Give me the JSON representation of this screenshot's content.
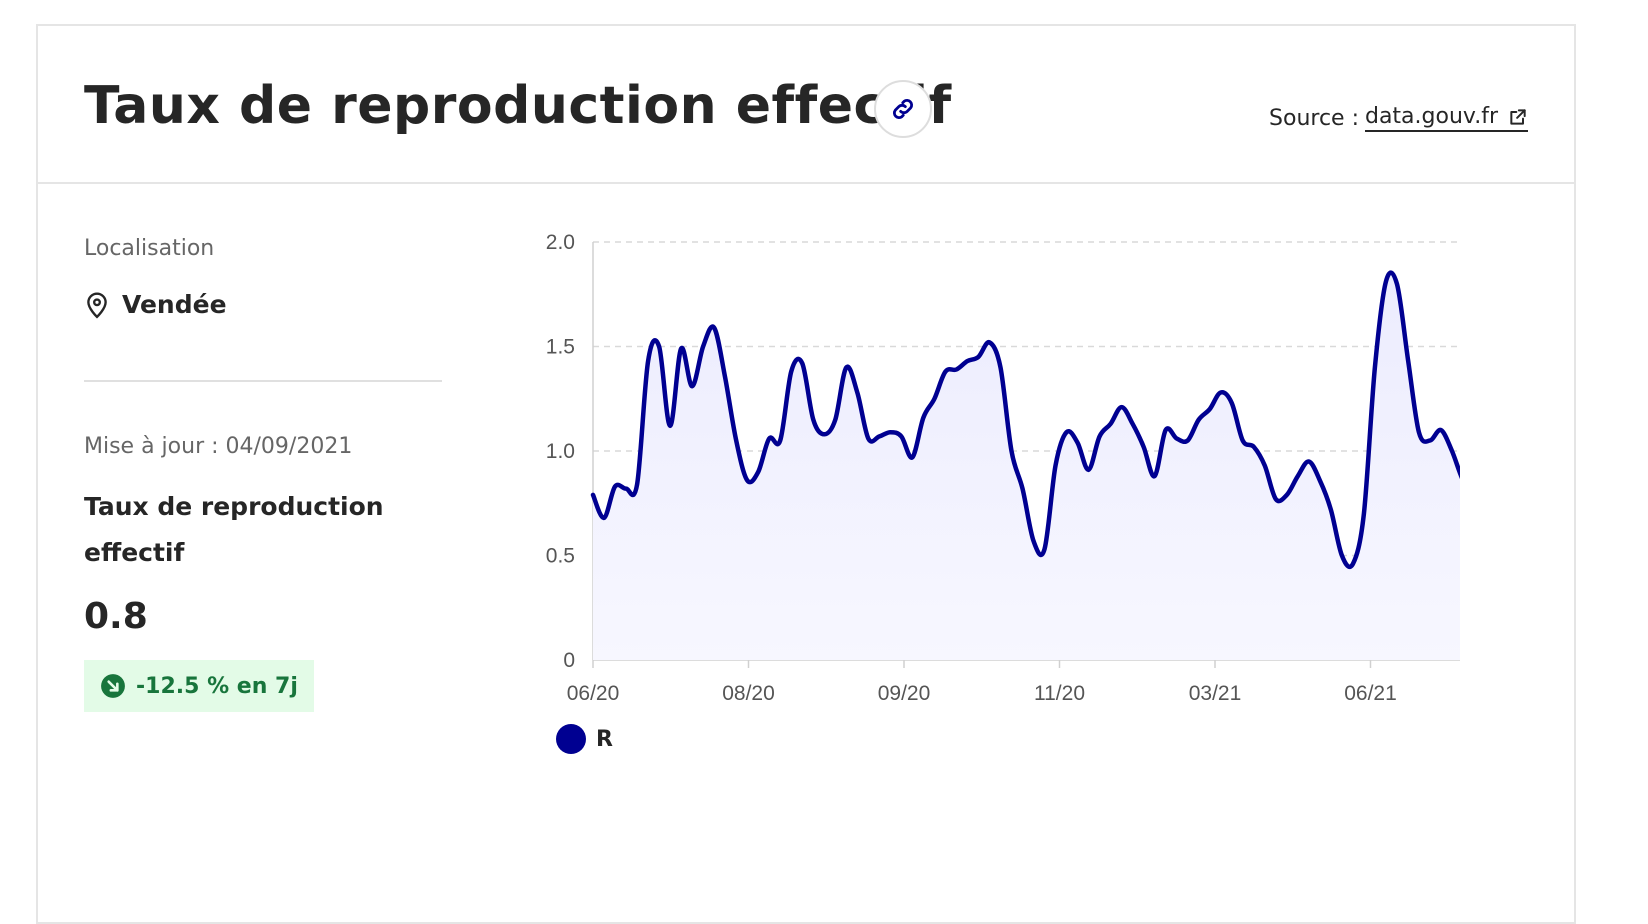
{
  "header": {
    "title": "Taux de reproduction effectif",
    "source_prefix": "Source :",
    "source_link": "data.gouv.fr",
    "link_icon": "link-icon",
    "external_icon": "external-link-icon"
  },
  "side": {
    "location_label": "Localisation",
    "location_value": "Vendée",
    "location_icon": "map-pin-icon",
    "update_label": "Mise à jour : 04/09/2021",
    "kpi_label": "Taux de reproduction effectif",
    "kpi_value": "0.8",
    "trend_text": "-12.5 % en 7j",
    "trend_icon": "arrow-down-right-icon"
  },
  "colors": {
    "line": "#000091",
    "area": "#ececfe",
    "badge_bg": "#e3fbe7",
    "badge_fg": "#18753c"
  },
  "chart_data": {
    "type": "area",
    "ylim": [
      0,
      2.0
    ],
    "yticks": [
      "0",
      "0.5",
      "1.0",
      "1.5",
      "2.0"
    ],
    "ytick_values": [
      0,
      0.5,
      1.0,
      1.5,
      2.0
    ],
    "xticks": [
      "06/20",
      "08/20",
      "09/20",
      "11/20",
      "03/21",
      "06/21"
    ],
    "grid": true,
    "legend_position": "bottom-left",
    "series": [
      {
        "name": "R",
        "values": [
          0.79,
          0.68,
          0.83,
          0.82,
          0.84,
          1.43,
          1.5,
          1.12,
          1.49,
          1.31,
          1.5,
          1.59,
          1.35,
          1.05,
          0.86,
          0.9,
          1.06,
          1.05,
          1.38,
          1.42,
          1.15,
          1.08,
          1.15,
          1.4,
          1.28,
          1.06,
          1.07,
          1.09,
          1.07,
          0.97,
          1.16,
          1.25,
          1.38,
          1.39,
          1.43,
          1.45,
          1.52,
          1.4,
          1.0,
          0.82,
          0.57,
          0.53,
          0.93,
          1.09,
          1.04,
          0.91,
          1.07,
          1.13,
          1.21,
          1.13,
          1.02,
          0.88,
          1.1,
          1.06,
          1.05,
          1.15,
          1.2,
          1.28,
          1.23,
          1.05,
          1.02,
          0.93,
          0.77,
          0.79,
          0.88,
          0.95,
          0.86,
          0.72,
          0.5,
          0.46,
          0.7,
          1.4,
          1.81,
          1.8,
          1.44,
          1.09,
          1.05,
          1.1,
          1.0,
          0.86,
          0.78
        ]
      }
    ]
  }
}
